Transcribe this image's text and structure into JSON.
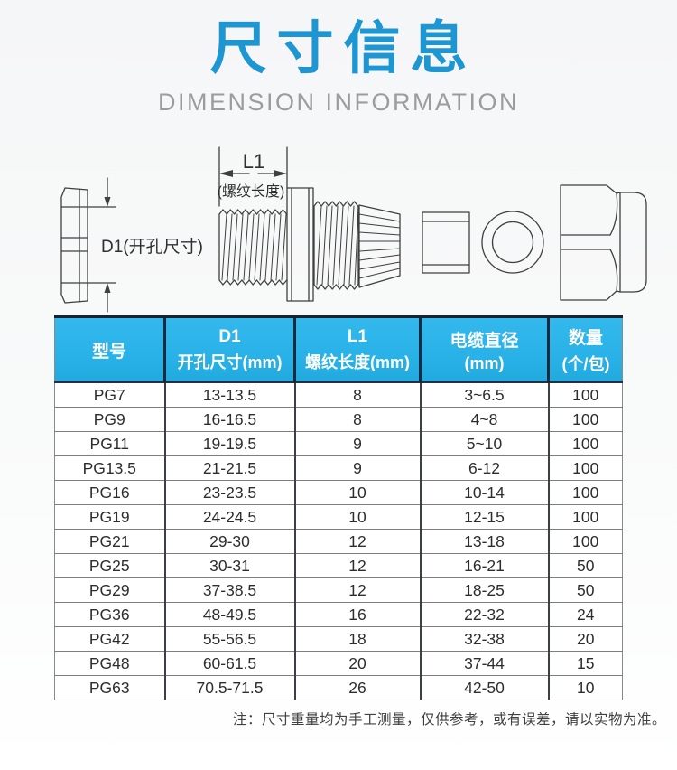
{
  "page": {
    "title": "尺寸信息",
    "subtitle": "DIMENSION INFORMATION",
    "note": "注：尺寸重量均为手工测量，仅供参考，或有误差，请以实物为准。"
  },
  "diagram": {
    "d1_label": "D1(开孔尺寸)",
    "l1_label": "L1",
    "l1_sublabel": "(螺纹长度)"
  },
  "table": {
    "headers": [
      {
        "line1": "型号",
        "line2": ""
      },
      {
        "line1": "D1",
        "line2": "开孔尺寸(mm)"
      },
      {
        "line1": "L1",
        "line2": "螺纹长度(mm)"
      },
      {
        "line1": "电缆直径",
        "line2": "(mm)"
      },
      {
        "line1": "数量",
        "line2": "(个/包)"
      }
    ],
    "rows": [
      [
        "PG7",
        "13-13.5",
        "8",
        "3~6.5",
        "100"
      ],
      [
        "PG9",
        "16-16.5",
        "8",
        "4~8",
        "100"
      ],
      [
        "PG11",
        "19-19.5",
        "9",
        "5~10",
        "100"
      ],
      [
        "PG13.5",
        "21-21.5",
        "9",
        "6-12",
        "100"
      ],
      [
        "PG16",
        "23-23.5",
        "10",
        "10-14",
        "100"
      ],
      [
        "PG19",
        "24-24.5",
        "10",
        "12-15",
        "100"
      ],
      [
        "PG21",
        "29-30",
        "12",
        "13-18",
        "100"
      ],
      [
        "PG25",
        "30-31",
        "12",
        "16-21",
        "50"
      ],
      [
        "PG29",
        "37-38.5",
        "12",
        "18-25",
        "50"
      ],
      [
        "PG36",
        "48-49.5",
        "16",
        "22-32",
        "24"
      ],
      [
        "PG42",
        "55-56.5",
        "18",
        "32-38",
        "20"
      ],
      [
        "PG48",
        "60-61.5",
        "20",
        "37-44",
        "15"
      ],
      [
        "PG63",
        "70.5-71.5",
        "26",
        "42-50",
        "10"
      ]
    ]
  },
  "colors": {
    "title_blue": "#1d96d2",
    "subtitle_gray": "#9c9c9c",
    "header_blue": "#29b2e8",
    "header_text": "#ffffff",
    "border_dark": "#16222e",
    "body_text": "#2d2d2d",
    "note_gray": "#404040",
    "line_art": "#3f3f3f"
  }
}
